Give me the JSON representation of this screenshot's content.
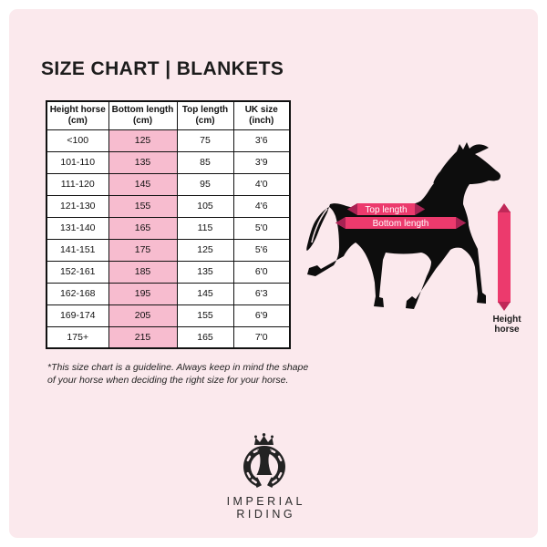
{
  "title": "SIZE CHART | BLANKETS",
  "table": {
    "headers": [
      {
        "l1": "Height horse",
        "l2": "(cm)"
      },
      {
        "l1": "Bottom length",
        "l2": "(cm)"
      },
      {
        "l1": "Top length",
        "l2": "(cm)"
      },
      {
        "l1": "UK size",
        "l2": "(inch)"
      }
    ],
    "rows": [
      [
        "<100",
        "125",
        "75",
        "3'6"
      ],
      [
        "101-110",
        "135",
        "85",
        "3'9"
      ],
      [
        "111-120",
        "145",
        "95",
        "4'0"
      ],
      [
        "121-130",
        "155",
        "105",
        "4'6"
      ],
      [
        "131-140",
        "165",
        "115",
        "5'0"
      ],
      [
        "141-151",
        "175",
        "125",
        "5'6"
      ],
      [
        "152-161",
        "185",
        "135",
        "6'0"
      ],
      [
        "162-168",
        "195",
        "145",
        "6'3"
      ],
      [
        "169-174",
        "205",
        "155",
        "6'9"
      ],
      [
        "175+",
        "215",
        "165",
        "7'0"
      ]
    ]
  },
  "footnote": {
    "line1": "*This size chart is a guideline. Always keep in mind the shape",
    "line2": "of your horse when deciding the right size for your horse."
  },
  "diagram": {
    "top_length_label": "Top length",
    "bottom_length_label": "Bottom length",
    "height_label": "Height horse"
  },
  "logo": {
    "line1": "IMPERIAL",
    "line2": "RIDING"
  },
  "colors": {
    "card_background": "#fbe9ed",
    "table_highlight_header": "#f2a6bf",
    "table_highlight_cell": "#f7bccf",
    "arrow_pink": "#ec3a6d",
    "arrow_tip_dark": "#a82253",
    "silhouette_black": "#0d0d0d"
  }
}
